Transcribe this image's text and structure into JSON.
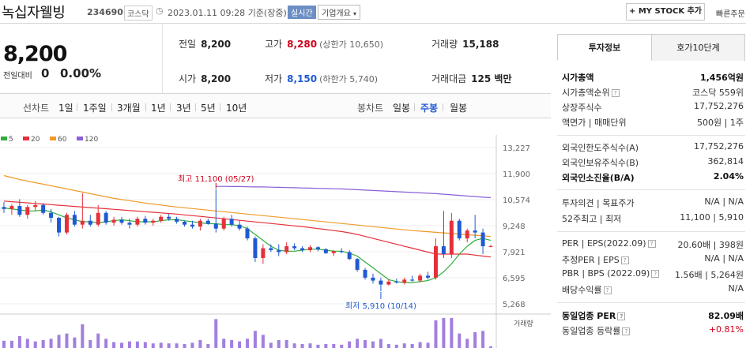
{
  "header": {
    "stock_name": "녹십자웰빙",
    "code": "234690",
    "market": "코스닥",
    "datetime": "2023.01.11 09:28",
    "basis": "기준(장중)",
    "realtime_label": "실시간",
    "corp_overview": "기업개요",
    "my_stock": "MY STOCK 추가",
    "quick_order": "빠른주문"
  },
  "price": {
    "current": "8,200",
    "change_label": "전일대비",
    "change": "0",
    "change_pct": "0.00%"
  },
  "stats": {
    "prev_label": "전일",
    "prev": "8,200",
    "high_label": "고가",
    "high": "8,280",
    "upper_limit": "(상한가 10,650)",
    "volume_label": "거래량",
    "volume": "15,188",
    "open_label": "시가",
    "open": "8,200",
    "low_label": "저가",
    "low": "8,150",
    "lower_limit": "(하한가 5,740)",
    "amount_label": "거래대금",
    "amount": "125 백만"
  },
  "chart_toolbar": {
    "line_label": "선차트",
    "line_periods": [
      "1일",
      "1주일",
      "3개월",
      "1년",
      "3년",
      "5년",
      "10년"
    ],
    "candle_label": "봉차트",
    "candle_periods": [
      "일봉",
      "주봉",
      "월봉"
    ],
    "selected": "주봉"
  },
  "chart_data": {
    "type": "candlestick",
    "legend": [
      {
        "name": "5",
        "color": "#2fae3b"
      },
      {
        "name": "20",
        "color": "#e5303a"
      },
      {
        "name": "60",
        "color": "#f09a2a"
      },
      {
        "name": "120",
        "color": "#8a5fd6"
      }
    ],
    "y_ticks": [
      "13,227",
      "11,900",
      "10,574",
      "9,248",
      "7,921",
      "6,595",
      "5,268"
    ],
    "ylim": [
      5268,
      13227
    ],
    "high_annotation": "최고 11,100 (05/27)",
    "low_annotation": "최저 5,910 (10/14)",
    "volume_label": "거래량",
    "candles": [
      [
        10200,
        10450,
        9900,
        10100
      ],
      [
        10100,
        10350,
        9800,
        10250
      ],
      [
        10250,
        10600,
        9700,
        9800
      ],
      [
        9800,
        10300,
        9600,
        10200
      ],
      [
        10200,
        10500,
        10000,
        10300
      ],
      [
        10300,
        10400,
        9800,
        9900
      ],
      [
        9900,
        10100,
        9400,
        9650
      ],
      [
        9650,
        9700,
        8700,
        8900
      ],
      [
        8900,
        9900,
        8800,
        9800
      ],
      [
        9800,
        10000,
        9200,
        9300
      ],
      [
        9300,
        10900,
        9100,
        9500
      ],
      [
        9500,
        9800,
        9200,
        9300
      ],
      [
        9300,
        10300,
        9200,
        9900
      ],
      [
        9900,
        10000,
        9300,
        9400
      ],
      [
        9400,
        9700,
        9250,
        9550
      ],
      [
        9550,
        9700,
        9300,
        9400
      ],
      [
        9400,
        9600,
        9100,
        9300
      ],
      [
        9300,
        9700,
        9200,
        9600
      ],
      [
        9600,
        9750,
        9300,
        9400
      ],
      [
        9400,
        9600,
        9250,
        9500
      ],
      [
        9500,
        9800,
        9400,
        9700
      ],
      [
        9700,
        9850,
        9500,
        9600
      ],
      [
        9600,
        9700,
        9350,
        9450
      ],
      [
        9450,
        9500,
        9200,
        9300
      ],
      [
        9300,
        9500,
        9100,
        9200
      ],
      [
        9200,
        9600,
        9000,
        9500
      ],
      [
        9500,
        9600,
        9300,
        9350
      ],
      [
        9350,
        11100,
        8900,
        9100
      ],
      [
        9100,
        9700,
        9000,
        9600
      ],
      [
        9600,
        9800,
        9200,
        9300
      ],
      [
        9300,
        9500,
        9000,
        9100
      ],
      [
        9100,
        9200,
        8500,
        8600
      ],
      [
        8600,
        8700,
        7400,
        7600
      ],
      [
        7600,
        8300,
        7300,
        8100
      ],
      [
        8100,
        8300,
        7900,
        8000
      ],
      [
        8000,
        8300,
        7700,
        7900
      ],
      [
        7900,
        8400,
        7800,
        8200
      ],
      [
        8200,
        8350,
        8000,
        8100
      ],
      [
        8100,
        8200,
        7900,
        8000
      ],
      [
        8000,
        8250,
        7900,
        8150
      ],
      [
        8150,
        8200,
        7950,
        8050
      ],
      [
        8050,
        8100,
        7800,
        7850
      ],
      [
        7850,
        8000,
        7700,
        7950
      ],
      [
        7950,
        8100,
        7850,
        7900
      ],
      [
        7900,
        8000,
        7500,
        7550
      ],
      [
        7550,
        7600,
        6900,
        7000
      ],
      [
        7000,
        7100,
        6500,
        6600
      ],
      [
        6600,
        6800,
        6300,
        6450
      ],
      [
        6450,
        6600,
        5910,
        6250
      ],
      [
        6250,
        6500,
        6200,
        6400
      ],
      [
        6400,
        6550,
        6300,
        6350
      ],
      [
        6350,
        6600,
        6250,
        6500
      ],
      [
        6500,
        6700,
        6400,
        6450
      ],
      [
        6450,
        6800,
        6350,
        6700
      ],
      [
        6700,
        6900,
        6500,
        6600
      ],
      [
        6600,
        8600,
        6500,
        8200
      ],
      [
        8200,
        10000,
        7600,
        7800
      ],
      [
        7800,
        9900,
        7600,
        9500
      ],
      [
        9500,
        9600,
        8500,
        8600
      ],
      [
        8600,
        9100,
        8400,
        9000
      ],
      [
        9000,
        9800,
        8600,
        8900
      ],
      [
        8900,
        9100,
        7800,
        8200
      ],
      [
        8200,
        8280,
        8150,
        8200
      ]
    ],
    "ma5": [
      10150,
      10100,
      10050,
      10000,
      10000,
      10050,
      9950,
      9800,
      9650,
      9550,
      9450,
      9450,
      9400,
      9450,
      9500,
      9550,
      9500,
      9450,
      9450,
      9450,
      9500,
      9550,
      9550,
      9500,
      9450,
      9400,
      9350,
      9350,
      9300,
      9300,
      9250,
      9100,
      8800,
      8500,
      8200,
      8000,
      7950,
      7950,
      8000,
      8050,
      8050,
      8000,
      7950,
      7950,
      7850,
      7700,
      7400,
      7100,
      6800,
      6500,
      6400,
      6350,
      6350,
      6400,
      6450,
      6600,
      6900,
      7300,
      7800,
      8200,
      8500,
      8600,
      8500
    ],
    "ma20": [
      10500,
      10470,
      10440,
      10410,
      10380,
      10350,
      10320,
      10290,
      10260,
      10230,
      10200,
      10170,
      10140,
      10110,
      10080,
      10050,
      10020,
      9990,
      9960,
      9930,
      9900,
      9870,
      9840,
      9800,
      9760,
      9720,
      9680,
      9640,
      9600,
      9560,
      9520,
      9480,
      9440,
      9400,
      9360,
      9320,
      9280,
      9240,
      9200,
      9150,
      9100,
      9050,
      9000,
      8950,
      8880,
      8800,
      8700,
      8600,
      8500,
      8400,
      8300,
      8200,
      8100,
      8000,
      7900,
      7800,
      7800,
      7800,
      7800,
      7800,
      7750,
      7700,
      7650
    ],
    "ma60": [
      11800,
      11700,
      11600,
      11520,
      11440,
      11360,
      11280,
      11200,
      11120,
      11040,
      10960,
      10880,
      10800,
      10720,
      10640,
      10580,
      10520,
      10460,
      10400,
      10350,
      10300,
      10250,
      10200,
      10160,
      10120,
      10080,
      10040,
      10000,
      9960,
      9920,
      9880,
      9840,
      9800,
      9760,
      9720,
      9680,
      9640,
      9600,
      9560,
      9520,
      9480,
      9440,
      9400,
      9360,
      9320,
      9280,
      9240,
      9200,
      9160,
      9120,
      9080,
      9040,
      9000,
      8970,
      8940,
      8910,
      8880,
      8850,
      8820,
      8790,
      8760,
      8730,
      8700
    ],
    "ma120": [
      null,
      null,
      null,
      null,
      null,
      null,
      null,
      null,
      null,
      null,
      null,
      null,
      null,
      null,
      null,
      null,
      null,
      null,
      null,
      null,
      null,
      null,
      null,
      null,
      null,
      null,
      null,
      11250,
      11250,
      11240,
      11240,
      11230,
      11220,
      11220,
      11210,
      11200,
      11190,
      11180,
      11170,
      11160,
      11150,
      11140,
      11130,
      11120,
      11100,
      11080,
      11060,
      11040,
      11020,
      11000,
      10980,
      10960,
      10940,
      10920,
      10900,
      10880,
      10850,
      10820,
      10790,
      10760,
      10730,
      10700,
      10680
    ]
  },
  "investment_info": {
    "tab_active": "투자정보",
    "tab_other": "호가10단계",
    "market_cap_label": "시가총액",
    "market_cap": "1,456억원",
    "rank_label": "시가총액순위",
    "rank": "코스닥 559위",
    "shares_label": "상장주식수",
    "shares": "17,752,276",
    "face_label": "액면가",
    "trade_unit_label": "매매단위",
    "face": "500원",
    "trade_unit": "1주",
    "foreign_limit_label": "외국인한도주식수(A)",
    "foreign_limit": "17,752,276",
    "foreign_hold_label": "외국인보유주식수(B)",
    "foreign_hold": "362,814",
    "foreign_ratio_label": "외국인소진율(B/A)",
    "foreign_ratio": "2.04%",
    "opinion_label": "투자의견",
    "target_label": "목표주가",
    "opinion": "N/A",
    "target": "N/A",
    "w52_label": "52주최고",
    "w52_low_label": "최저",
    "w52_high": "11,100",
    "w52_low": "5,910",
    "per_label": "PER",
    "eps_label": "EPS(2022.09)",
    "per": "20.60배",
    "eps": "398원",
    "est_per_label": "추정PER",
    "est_eps_label": "EPS",
    "est_per": "N/A",
    "est_eps": "N/A",
    "pbr_label": "PBR",
    "bps_label": "BPS (2022.09)",
    "pbr": "1.56배",
    "bps": "5,264원",
    "div_label": "배당수익률",
    "div": "N/A",
    "sector_per_label": "동일업종 PER",
    "sector_per": "82.09배",
    "sector_rate_label": "동일업종 등락률",
    "sector_rate": "+0.81%"
  }
}
